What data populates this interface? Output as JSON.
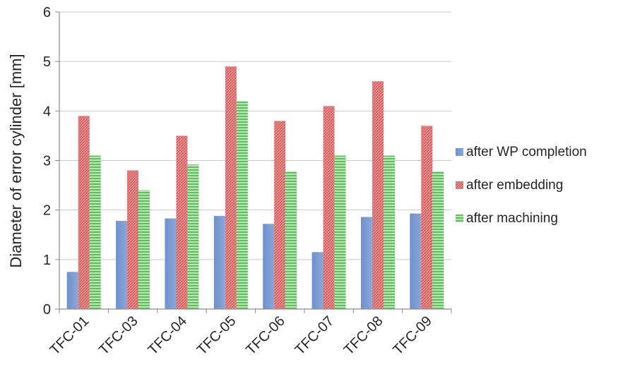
{
  "chart_data": {
    "type": "bar",
    "categories": [
      "TFC-01",
      "TFC-03",
      "TFC-04",
      "TFC-05",
      "TFC-06",
      "TFC-07",
      "TFC-08",
      "TFC-09"
    ],
    "series": [
      {
        "name": "after WP completion",
        "color": "#7b9bd2",
        "values": [
          0.75,
          1.78,
          1.83,
          1.88,
          1.72,
          1.15,
          1.86,
          1.93
        ]
      },
      {
        "name": "after embedding",
        "color": "#e07676",
        "values": [
          3.9,
          2.8,
          3.5,
          4.9,
          3.8,
          4.1,
          4.6,
          3.7
        ]
      },
      {
        "name": "after machining",
        "color": "#8fd28f",
        "values": [
          3.1,
          2.4,
          2.92,
          4.2,
          2.78,
          3.1,
          3.1,
          2.78
        ]
      }
    ],
    "ylabel": "Diameter of error cylinder [mm]",
    "xlabel": "",
    "ylim": [
      0,
      6
    ],
    "yticks": [
      0,
      1,
      2,
      3,
      4,
      5,
      6
    ],
    "grid": true,
    "legend_position": "right"
  }
}
